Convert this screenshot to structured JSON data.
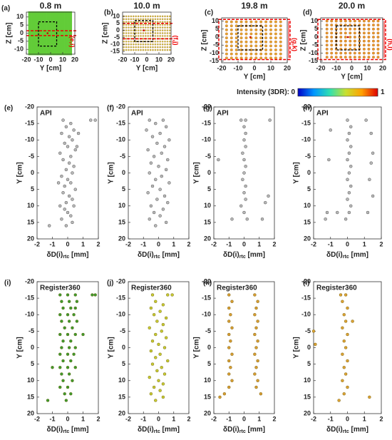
{
  "chart_data": [
    {
      "type": "map",
      "panel": "(a)",
      "title": "0.8 m",
      "xlabel": "Y [cm]",
      "ylabel": "Z [cm]",
      "xlim": [
        -20,
        20
      ],
      "ylim": [
        -13,
        13
      ],
      "xticks": [
        -20,
        -10,
        0,
        10,
        20
      ],
      "yticks": [
        -10,
        -5,
        0,
        5,
        10
      ],
      "marker": "cell",
      "color": "#62cc38",
      "grid_x": [
        -17,
        -14,
        -11,
        -8,
        -5,
        -2,
        1,
        4,
        7,
        10,
        13,
        16
      ],
      "grid_z": [
        -12,
        -9,
        -6,
        -3,
        0,
        3,
        6,
        9,
        12
      ],
      "region_label": "(e,i)"
    },
    {
      "type": "map",
      "panel": "(b)",
      "title": "10.0 m",
      "xlabel": "Y [cm]",
      "ylabel": "Z [cm]",
      "xlim": [
        -20,
        20
      ],
      "ylim": [
        -17,
        13
      ],
      "xticks": [
        -20,
        -10,
        0,
        10,
        20
      ],
      "yticks": [
        -15,
        -10,
        -5,
        0,
        5,
        10
      ],
      "marker": "dot",
      "color": "#c8cf3c",
      "grid_x": [
        -19,
        -17,
        -15,
        -13,
        -11,
        -9,
        -7,
        -5,
        -3,
        -1,
        1,
        3,
        5,
        7,
        9,
        11,
        13,
        15,
        17,
        19
      ],
      "grid_z": [
        -14,
        -12,
        -10,
        -8,
        -6,
        -4,
        -2,
        0,
        2,
        4,
        6,
        8,
        10
      ],
      "region_label": "(f,j)"
    },
    {
      "type": "map",
      "panel": "(c)",
      "title": "19.8 m",
      "xlabel": "Y [cm]",
      "ylabel": "Z [cm]",
      "xlim": [
        -20,
        20
      ],
      "ylim": [
        -16,
        12
      ],
      "xticks": [
        -20,
        -10,
        0,
        10,
        20
      ],
      "yticks": [
        -15,
        -10,
        -5,
        0,
        5,
        10
      ],
      "marker": "dot",
      "color": "#e4a62e",
      "grid_x": [
        -17,
        -14,
        -11,
        -8,
        -5,
        -2,
        1,
        4,
        7,
        10,
        13,
        16
      ],
      "grid_z": [
        -13,
        -10.5,
        -8,
        -5.5,
        -3,
        -0.5,
        2,
        4.5,
        7,
        9.5
      ],
      "region_label": "(g,k)"
    },
    {
      "type": "map",
      "panel": "(d)",
      "title": "20.0 m",
      "xlabel": "Y [cm]",
      "ylabel": "Z [cm]",
      "xlim": [
        -20,
        20
      ],
      "ylim": [
        -16,
        12
      ],
      "xticks": [
        -20,
        -10,
        0,
        10,
        20
      ],
      "yticks": [
        -15,
        -10,
        -5,
        0,
        5,
        10
      ],
      "marker": "dot",
      "color": "#e49a2c",
      "grid_x": [
        -16,
        -13,
        -10,
        -7,
        -4,
        -1,
        2,
        5,
        8,
        11,
        14,
        17
      ],
      "grid_z": [
        -12.5,
        -10,
        -7.5,
        -5,
        -2.5,
        0,
        2.5,
        5,
        7.5,
        10
      ],
      "region_label": "(h,l)"
    },
    {
      "type": "scatter",
      "panel": "(e)",
      "title": "API",
      "style": "open",
      "color": "#b8b8b8",
      "xlabel_parts": [
        "δD(i)",
        "rtc",
        " [mm]"
      ],
      "ylabel": "Y [cm]",
      "xlim": [
        -2,
        2
      ],
      "ylim": [
        -20,
        20
      ],
      "y_reversed": true,
      "xticks": [
        -2,
        -1,
        0,
        1,
        2
      ],
      "yticks": [
        -20,
        -15,
        -10,
        -5,
        0,
        5,
        10,
        15,
        20
      ],
      "x": [
        -0.3,
        0.2,
        -0.1,
        0.4,
        -0.4,
        0.1,
        0.3,
        -0.2,
        0,
        0.5,
        -0.5,
        0.2,
        -0.3,
        0.1,
        0.4,
        -0.1,
        0.3,
        -0.4,
        0,
        0.2,
        -0.2,
        0.5,
        -0.3,
        0.1,
        0.3,
        -0.1,
        0.4,
        -0.2,
        0,
        0.2,
        -0.4,
        0.3,
        -0.1,
        1.5,
        1.8,
        -1.2,
        0.6,
        -0.6,
        0.7,
        -0.5
      ],
      "y": [
        -16,
        -15,
        -14,
        -13,
        -12,
        -11,
        -10,
        -9,
        -8,
        -7,
        -6,
        -5,
        -4,
        -3,
        -2,
        -1,
        0,
        1,
        2,
        3,
        4,
        5,
        6,
        7,
        8,
        9,
        10,
        11,
        12,
        13,
        14,
        15,
        16,
        -16,
        -16,
        16,
        -8,
        3,
        -12,
        10
      ]
    },
    {
      "type": "scatter",
      "panel": "(f)",
      "title": "API",
      "style": "open",
      "color": "#b8b8b8",
      "xlabel_parts": [
        "δD(i)",
        "rtc",
        " [mm]"
      ],
      "ylabel": "Y [cm]",
      "xlim": [
        -2,
        2
      ],
      "ylim": [
        -20,
        20
      ],
      "y_reversed": true,
      "xticks": [
        -2,
        -1,
        0,
        1,
        2
      ],
      "yticks": [
        -20,
        -15,
        -10,
        -5,
        0,
        5,
        10,
        15,
        20
      ],
      "x": [
        -0.6,
        0.3,
        -0.2,
        0.5,
        -0.8,
        0.1,
        -0.4,
        0.7,
        -0.1,
        0.4,
        -0.7,
        0.2,
        -0.3,
        0.6,
        -0.5,
        0,
        0.5,
        -0.6,
        0.2,
        -0.2,
        0.7,
        -0.4,
        0.1,
        -0.7,
        0.4,
        -0.1,
        0.6,
        -0.5,
        0.3,
        -0.3,
        0.1,
        -0.6,
        0.5,
        -0.2
      ],
      "y": [
        -16,
        -16,
        -15,
        -14,
        -13,
        -12,
        -11,
        -10,
        -9,
        -8,
        -7,
        -6,
        -5,
        -4,
        -3,
        -2,
        -1,
        0,
        1,
        2,
        3,
        4,
        5,
        6,
        7,
        8,
        9,
        10,
        11,
        12,
        13,
        14,
        15,
        16
      ]
    },
    {
      "type": "scatter",
      "panel": "(g)",
      "title": "API",
      "style": "open",
      "color": "#b8b8b8",
      "xlabel_parts": [
        "δD(i)",
        "rtc",
        " [mm]"
      ],
      "ylabel": "Y [cm]",
      "xlim": [
        -2,
        2
      ],
      "ylim": [
        -20,
        20
      ],
      "y_reversed": true,
      "xticks": [
        -2,
        -1,
        0,
        1,
        2
      ],
      "yticks": [
        -20,
        -15,
        -10,
        -5,
        0,
        5,
        10,
        15,
        20
      ],
      "x": [
        -0.2,
        0.1,
        0,
        0.1,
        0,
        0.1,
        -0.1,
        0,
        0.1,
        0,
        -0.1,
        0.1,
        0,
        0.1,
        -0.2,
        0,
        0.2,
        -0.8,
        1.2,
        1.4,
        1.6,
        -1.7,
        1.7
      ],
      "y": [
        -16,
        -16,
        -14,
        -12,
        -10,
        -8,
        -6,
        -4,
        -2,
        0,
        2,
        4,
        6,
        8,
        10,
        12,
        14,
        14,
        14,
        9,
        7,
        -4,
        -16
      ]
    },
    {
      "type": "scatter",
      "panel": "(h)",
      "title": "API",
      "style": "open",
      "color": "#b8b8b8",
      "xlabel_parts": [
        "δD(i)",
        "rtc",
        " [mm]"
      ],
      "ylabel": "Y [cm]",
      "xlim": [
        -2,
        2
      ],
      "ylim": [
        -20,
        20
      ],
      "y_reversed": true,
      "xticks": [
        -2,
        -1,
        0,
        1,
        2
      ],
      "yticks": [
        -20,
        -15,
        -10,
        -5,
        0,
        5,
        10,
        15,
        20
      ],
      "x": [
        0,
        0.2,
        0.1,
        0,
        0.2,
        0.1,
        0,
        0.2,
        0.1,
        0,
        0.2,
        0.1,
        0,
        0.2,
        0.1,
        -0.1,
        1.1,
        1.4,
        1.5,
        1.4,
        1.3,
        1.5,
        1.2,
        -1,
        -1.1,
        -1.2,
        -1.3,
        -0.6
      ],
      "y": [
        -16,
        -14,
        -12,
        -10,
        -8,
        -6,
        -4,
        -2,
        0,
        2,
        4,
        6,
        8,
        10,
        12,
        14,
        -16,
        -12,
        -6,
        -3,
        2,
        7,
        12,
        -13,
        -4,
        12,
        14,
        12
      ]
    },
    {
      "type": "scatter",
      "panel": "(i)",
      "title": "Register360",
      "style": "filled",
      "color": "#3f9a2c",
      "xlabel_parts": [
        "δD(i)",
        "rtc",
        " [mm]"
      ],
      "ylabel": "Y [cm]",
      "xlim": [
        -2,
        2
      ],
      "ylim": [
        -20,
        20
      ],
      "y_reversed": true,
      "xticks": [
        -2,
        -1,
        0,
        1,
        2
      ],
      "yticks": [
        -20,
        -15,
        -10,
        -5,
        0,
        5,
        10,
        15,
        20
      ],
      "x": [
        -0.5,
        0,
        0.5,
        -0.4,
        0.1,
        0.6,
        -0.3,
        0.2,
        0.5,
        -0.5,
        0,
        0.4,
        -0.4,
        0.1,
        0.6,
        -0.2,
        0.3,
        -0.5,
        0,
        0.5,
        -0.3,
        0.2,
        -0.4,
        0.1,
        0.5,
        -0.5,
        0,
        0.4,
        -0.3,
        0.2,
        -0.5,
        0,
        0.5,
        -0.4,
        0.1,
        -0.3,
        0.3,
        -0.5,
        0,
        -0.2,
        0.2,
        -0.1,
        1.6,
        1.8,
        -1.3,
        1,
        -1
      ],
      "y": [
        -16,
        -16,
        -16,
        -14,
        -14,
        -14,
        -12,
        -12,
        -12,
        -10,
        -10,
        -10,
        -8,
        -8,
        -8,
        -6,
        -6,
        -4,
        -4,
        -4,
        -2,
        -2,
        0,
        0,
        0,
        2,
        2,
        2,
        4,
        4,
        6,
        6,
        6,
        8,
        8,
        10,
        10,
        12,
        12,
        14,
        14,
        16,
        -16,
        -16,
        16,
        -4,
        6
      ]
    },
    {
      "type": "scatter",
      "panel": "(j)",
      "title": "Register360",
      "style": "filled",
      "color": "#c6c932",
      "xlabel_parts": [
        "δD(i)",
        "rtc",
        " [mm]"
      ],
      "ylabel": "Y [cm]",
      "xlim": [
        -2,
        2
      ],
      "ylim": [
        -20,
        20
      ],
      "y_reversed": true,
      "xticks": [
        -2,
        -1,
        0,
        1,
        2
      ],
      "yticks": [
        -20,
        -15,
        -10,
        -5,
        0,
        5,
        10,
        15,
        20
      ],
      "x": [
        -0.4,
        0.6,
        0.9,
        -0.2,
        0.3,
        -0.5,
        0.1,
        -0.3,
        0.5,
        -0.1,
        0.3,
        -0.6,
        0.2,
        -0.2,
        0.5,
        -0.4,
        0,
        0.4,
        -0.5,
        0.1,
        -0.2,
        0.6,
        -0.4,
        0.2,
        -0.1,
        0.4,
        -0.6,
        0,
        0.3,
        -0.3,
        0.1,
        -0.5,
        0.3,
        -0.2
      ],
      "y": [
        -16,
        -16,
        -16,
        -14,
        -13,
        -12,
        -11,
        -10,
        -9,
        -8,
        -7,
        -6,
        -5,
        -4,
        -3,
        -2,
        -1,
        0,
        1,
        2,
        3,
        4,
        5,
        6,
        7,
        8,
        9,
        10,
        11,
        12,
        13,
        14,
        15,
        16
      ]
    },
    {
      "type": "scatter",
      "panel": "(k)",
      "title": "Register360",
      "style": "filled",
      "color": "#d79c32",
      "xlabel_parts": [
        "δD(i)",
        "rtc",
        " [mm]"
      ],
      "ylabel": "Y [cm]",
      "xlim": [
        -2,
        2
      ],
      "ylim": [
        -20,
        20
      ],
      "y_reversed": true,
      "xticks": [
        -2,
        -1,
        0,
        1,
        2
      ],
      "yticks": [
        -20,
        -15,
        -10,
        -5,
        0,
        5,
        10,
        15,
        20
      ],
      "x": [
        -1,
        -0.8,
        -1,
        -0.9,
        -1,
        -0.8,
        -1,
        -0.9,
        -1,
        -0.8,
        -1,
        -0.9,
        -1,
        -0.8,
        -1,
        -1.3,
        -1.6,
        0.7,
        0.9,
        0.8,
        0.7,
        0.9,
        0.8,
        0.7,
        0.9,
        0.8,
        0.7,
        0.9,
        0.8,
        0.7,
        0.9,
        0.8,
        1.1
      ],
      "y": [
        -16,
        -14,
        -12,
        -10,
        -8,
        -6,
        -4,
        -2,
        0,
        2,
        4,
        6,
        8,
        10,
        12,
        14,
        15,
        -16,
        -14,
        -12,
        -10,
        -8,
        -6,
        -4,
        -2,
        0,
        2,
        4,
        6,
        8,
        10,
        12,
        14
      ]
    },
    {
      "type": "scatter",
      "panel": "(l)",
      "title": "Register360",
      "style": "filled",
      "color": "#dca234",
      "xlabel_parts": [
        "δD(i)",
        "rtc",
        " [mm]"
      ],
      "ylabel": "Y [cm]",
      "xlim": [
        -2,
        2
      ],
      "ylim": [
        -20,
        20
      ],
      "y_reversed": true,
      "xticks": [
        -2,
        -1,
        0,
        1,
        2
      ],
      "yticks": [
        -20,
        -15,
        -10,
        -5,
        0,
        5,
        10,
        15,
        20
      ],
      "x": [
        -0.4,
        -0.1,
        -0.3,
        0,
        -0.2,
        -0.1,
        -0.3,
        0,
        -0.2,
        -0.1,
        -0.3,
        0,
        -0.2,
        -0.1,
        -0.3,
        0,
        -0.2,
        -0.5,
        -2,
        -1.9,
        1.3,
        0.3
      ],
      "y": [
        -16,
        -16,
        -14,
        -12,
        -10,
        -8,
        -6,
        -4,
        -2,
        0,
        2,
        4,
        6,
        8,
        10,
        12,
        14,
        16,
        -5,
        -1,
        15,
        -8
      ]
    },
    {
      "type": "colorbar",
      "label": "Intensity (3DR):",
      "lim": [
        0,
        1
      ],
      "ticks": [
        0,
        1
      ],
      "colormap": [
        "#0000c8",
        "#0096ff",
        "#30e0b0",
        "#c8e030",
        "#ffa000",
        "#e00000"
      ]
    }
  ]
}
